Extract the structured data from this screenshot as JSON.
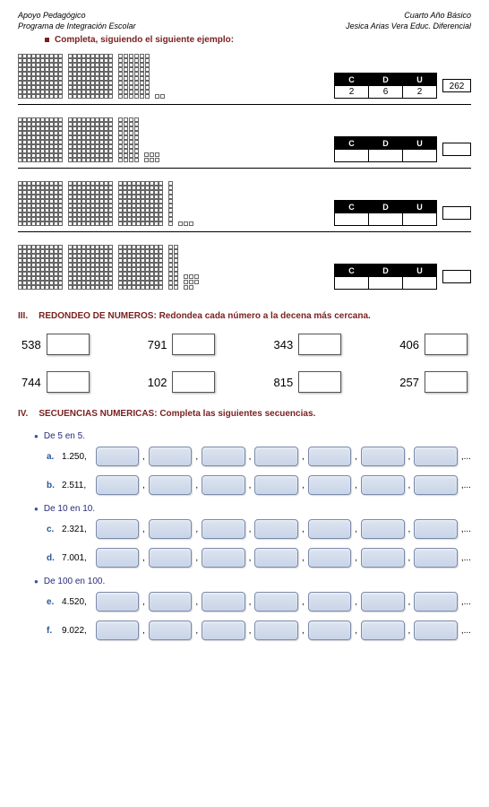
{
  "header": {
    "left1": "Apoyo Pedagógico",
    "left2": "Programa de Integración Escolar",
    "right1": "Cuarto Año Básico",
    "right2": "Jesica Arias Vera Educ. Diferencial"
  },
  "instruction": "Completa, siguiendo el siguiente ejemplo:",
  "cdu": {
    "c": "C",
    "d": "D",
    "u": "U"
  },
  "rows": [
    {
      "hundreds": 2,
      "tens": 6,
      "units": 2,
      "c": "2",
      "d": "6",
      "u": "2",
      "result": "262"
    },
    {
      "hundreds": 2,
      "tens": 4,
      "units": 6,
      "c": "",
      "d": "",
      "u": "",
      "result": ""
    },
    {
      "hundreds": 3,
      "tens": 1,
      "units": 3,
      "c": "",
      "d": "",
      "u": "",
      "result": ""
    },
    {
      "hundreds": 3,
      "tens": 2,
      "units": 8,
      "c": "",
      "d": "",
      "u": "",
      "result": ""
    }
  ],
  "section3": {
    "num": "III.",
    "title": "REDONDEO DE NUMEROS: Redondea cada número a la decena más cercana.",
    "row1": [
      "538",
      "791",
      "343",
      "406"
    ],
    "row2": [
      "744",
      "102",
      "815",
      "257"
    ]
  },
  "section4": {
    "num": "IV.",
    "title": "SECUENCIAS NUMERICAS: Completa las siguientes secuencias.",
    "groups": [
      {
        "label": "De 5 en 5.",
        "items": [
          {
            "letter": "a.",
            "start": "1.250,"
          },
          {
            "letter": "b.",
            "start": "2.511,"
          }
        ]
      },
      {
        "label": "De 10 en 10.",
        "items": [
          {
            "letter": "c.",
            "start": "2.321,"
          },
          {
            "letter": "d.",
            "start": "7.001,"
          }
        ]
      },
      {
        "label": "De 100 en 100.",
        "items": [
          {
            "letter": "e.",
            "start": "4.520,"
          },
          {
            "letter": "f.",
            "start": "9.022,"
          }
        ]
      }
    ]
  }
}
